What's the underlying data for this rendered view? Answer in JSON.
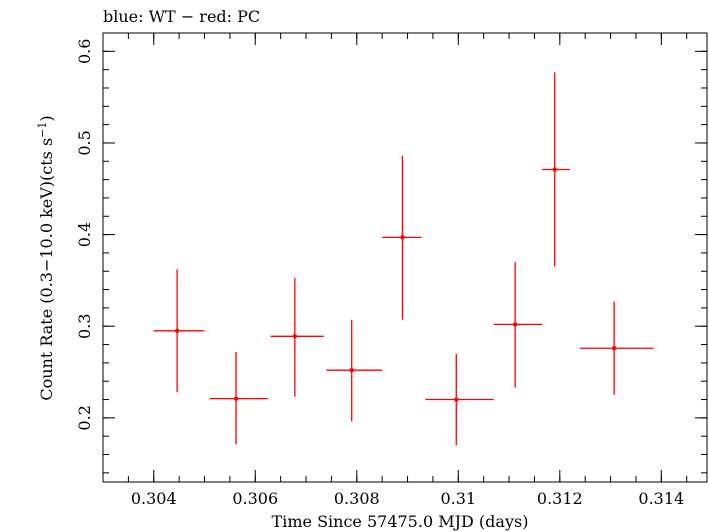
{
  "chart_data": {
    "type": "scatter",
    "title": "blue: WT − red: PC",
    "xlabel": "Time Since 57475.0 MJD (days)",
    "ylabel_main": "Count Rate (0.3−10.0 keV)(cts s",
    "ylabel_sup": "−1",
    "ylabel_close": ")",
    "xlim": [
      0.303,
      0.3149
    ],
    "ylim": [
      0.13,
      0.62
    ],
    "xticks": [
      0.304,
      0.306,
      0.308,
      0.31,
      0.312,
      0.314
    ],
    "xtick_labels": [
      "0.304",
      "0.306",
      "0.308",
      "0.31",
      "0.312",
      "0.314"
    ],
    "yticks": [
      0.2,
      0.3,
      0.4,
      0.5,
      0.6
    ],
    "ytick_labels": [
      "0.2",
      "0.3",
      "0.4",
      "0.5",
      "0.6"
    ],
    "grid": false,
    "series": [
      {
        "color": "#ff0000",
        "points": [
          {
            "x": 0.30446,
            "xlo": 0.304,
            "xhi": 0.305,
            "y": 0.295,
            "ylo": 0.228,
            "yhi": 0.362
          },
          {
            "x": 0.30562,
            "xlo": 0.3051,
            "xhi": 0.30625,
            "y": 0.221,
            "ylo": 0.171,
            "yhi": 0.272
          },
          {
            "x": 0.30678,
            "xlo": 0.3063,
            "xhi": 0.30735,
            "y": 0.289,
            "ylo": 0.223,
            "yhi": 0.353
          },
          {
            "x": 0.3079,
            "xlo": 0.3074,
            "xhi": 0.3085,
            "y": 0.252,
            "ylo": 0.196,
            "yhi": 0.307
          },
          {
            "x": 0.3089,
            "xlo": 0.3085,
            "xhi": 0.30928,
            "y": 0.397,
            "ylo": 0.307,
            "yhi": 0.486
          },
          {
            "x": 0.30996,
            "xlo": 0.30935,
            "xhi": 0.3107,
            "y": 0.22,
            "ylo": 0.17,
            "yhi": 0.27
          },
          {
            "x": 0.31112,
            "xlo": 0.3107,
            "xhi": 0.31165,
            "y": 0.302,
            "ylo": 0.233,
            "yhi": 0.37
          },
          {
            "x": 0.3119,
            "xlo": 0.31165,
            "xhi": 0.3122,
            "y": 0.471,
            "ylo": 0.365,
            "yhi": 0.577
          },
          {
            "x": 0.31307,
            "xlo": 0.3124,
            "xhi": 0.31385,
            "y": 0.276,
            "ylo": 0.225,
            "yhi": 0.327
          }
        ]
      }
    ]
  }
}
